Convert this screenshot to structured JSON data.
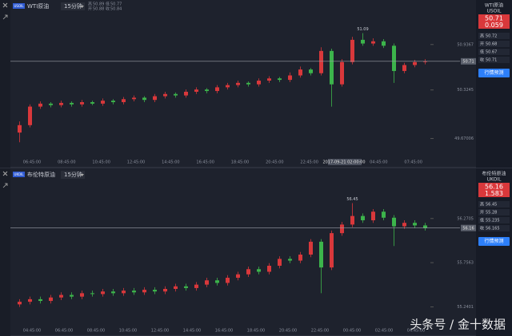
{
  "chart_data": [
    {
      "type": "candlestick",
      "symbol": "USOIL",
      "title": "WTI原油",
      "interval": "15分钟",
      "header_stats": [
        {
          "label": "高",
          "value": 50.89
        },
        {
          "label": "开",
          "value": 50.88
        },
        {
          "label": "低",
          "value": 50.77
        },
        {
          "label": "收",
          "value": 50.84
        }
      ],
      "open": [
        49.75,
        49.85,
        50.1,
        50.14,
        50.12,
        50.15,
        50.13,
        50.16,
        50.14,
        50.18,
        50.16,
        50.2,
        50.22,
        50.19,
        50.24,
        50.27,
        50.25,
        50.3,
        50.33,
        50.31,
        50.36,
        50.39,
        50.42,
        50.4,
        50.45,
        50.48,
        50.46,
        50.52,
        50.6,
        50.55,
        50.85,
        50.4,
        50.7,
        51.0,
        50.95,
        50.98,
        50.92,
        50.58,
        50.66,
        50.7
      ],
      "high": [
        49.9,
        50.13,
        50.17,
        50.16,
        50.18,
        50.17,
        50.19,
        50.18,
        50.21,
        50.2,
        50.23,
        50.25,
        50.24,
        50.27,
        50.3,
        50.29,
        50.33,
        50.36,
        50.35,
        50.39,
        50.42,
        50.45,
        50.44,
        50.48,
        50.51,
        50.5,
        50.56,
        50.64,
        50.62,
        50.9,
        50.88,
        50.74,
        51.04,
        51.09,
        51.02,
        51.01,
        50.95,
        50.69,
        50.73,
        50.74
      ],
      "low": [
        49.62,
        49.82,
        50.07,
        50.09,
        50.09,
        50.1,
        50.1,
        50.12,
        50.11,
        50.13,
        50.13,
        50.17,
        50.16,
        50.16,
        50.21,
        50.22,
        50.22,
        50.27,
        50.28,
        50.28,
        50.33,
        50.36,
        50.37,
        50.37,
        50.42,
        50.43,
        50.43,
        50.49,
        50.52,
        50.52,
        50.1,
        50.37,
        50.67,
        50.92,
        50.92,
        50.89,
        50.42,
        50.55,
        50.63,
        50.67
      ],
      "close": [
        49.85,
        50.1,
        50.14,
        50.12,
        50.15,
        50.13,
        50.16,
        50.14,
        50.18,
        50.16,
        50.2,
        50.22,
        50.19,
        50.24,
        50.27,
        50.25,
        50.3,
        50.33,
        50.31,
        50.36,
        50.39,
        50.42,
        50.4,
        50.45,
        50.48,
        50.46,
        50.52,
        50.6,
        50.55,
        50.85,
        50.4,
        50.7,
        51.0,
        50.95,
        50.98,
        50.92,
        50.58,
        50.66,
        50.7,
        50.71
      ],
      "colors": {
        "up": "#d9383b",
        "down": "#3cb44b"
      },
      "ylim": [
        49.45,
        51.3
      ],
      "yticks": [
        49.67006,
        50.3245,
        50.9367
      ],
      "time_labels": [
        "06:45:00",
        "08:45:00",
        "10:45:00",
        "12:45:00",
        "14:45:00",
        "16:45:00",
        "18:45:00",
        "20:45:00",
        "22:45:00",
        "2017-09-21 02:00:00",
        "04:45:00",
        "07:45:00"
      ],
      "highlight_time_index": 9,
      "quote": {
        "name": "WTI原油",
        "symbol": "USOIL",
        "change": 0.059,
        "stats": [
          {
            "label": "高",
            "value": 50.72
          },
          {
            "label": "开",
            "value": 50.68
          },
          {
            "label": "低",
            "value": 50.67
          },
          {
            "label": "收",
            "value": 50.71
          }
        ],
        "button": "行情预测"
      }
    },
    {
      "type": "candlestick",
      "symbol": "UKOIL",
      "title": "布伦特原油",
      "interval": "15分钟",
      "open": [
        55.27,
        55.3,
        55.33,
        55.31,
        55.35,
        55.38,
        55.36,
        55.4,
        55.39,
        55.42,
        55.4,
        55.43,
        55.41,
        55.44,
        55.42,
        55.45,
        55.48,
        55.46,
        55.5,
        55.55,
        55.52,
        55.58,
        55.62,
        55.68,
        55.65,
        55.72,
        55.8,
        55.78,
        55.85,
        56.0,
        55.7,
        56.1,
        56.2,
        56.3,
        56.25,
        56.35,
        56.28,
        56.18,
        56.22,
        56.19
      ],
      "high": [
        55.33,
        55.36,
        55.36,
        55.38,
        55.41,
        55.41,
        55.43,
        55.43,
        55.45,
        55.45,
        55.46,
        55.46,
        55.47,
        55.47,
        55.48,
        55.51,
        55.51,
        55.53,
        55.58,
        55.58,
        55.61,
        55.65,
        55.71,
        55.71,
        55.75,
        55.83,
        55.83,
        55.88,
        56.03,
        56.03,
        56.13,
        56.23,
        56.45,
        56.33,
        56.38,
        56.38,
        56.31,
        56.25,
        56.25,
        56.22
      ],
      "low": [
        55.24,
        55.27,
        55.28,
        55.28,
        55.32,
        55.33,
        55.33,
        55.36,
        55.36,
        55.37,
        55.37,
        55.38,
        55.38,
        55.39,
        55.39,
        55.42,
        55.43,
        55.43,
        55.47,
        55.49,
        55.49,
        55.55,
        55.59,
        55.62,
        55.62,
        55.69,
        55.75,
        55.75,
        55.82,
        55.4,
        55.67,
        56.07,
        56.17,
        56.22,
        56.22,
        56.25,
        55.95,
        56.15,
        56.16,
        56.13
      ],
      "close": [
        55.3,
        55.33,
        55.31,
        55.35,
        55.38,
        55.36,
        55.4,
        55.39,
        55.42,
        55.4,
        55.43,
        55.41,
        55.44,
        55.42,
        55.45,
        55.48,
        55.46,
        55.5,
        55.55,
        55.52,
        55.58,
        55.62,
        55.68,
        55.65,
        55.72,
        55.8,
        55.78,
        55.85,
        56.0,
        55.7,
        56.1,
        56.2,
        56.3,
        56.25,
        56.35,
        56.28,
        56.18,
        56.22,
        56.19,
        56.16
      ],
      "colors": {
        "up": "#d9383b",
        "down": "#3cb44b"
      },
      "ylim": [
        55.05,
        56.65
      ],
      "yticks": [
        55.2401,
        55.7563,
        56.2705
      ],
      "time_labels": [
        "04:45:00",
        "06:45:00",
        "08:45:00",
        "10:45:00",
        "12:45:00",
        "14:45:00",
        "16:45:00",
        "18:45:00",
        "20:45:00",
        "22:45:00",
        "00:45:00",
        "02:45:00",
        "04:45:00"
      ],
      "quote": {
        "name": "布伦特原油",
        "symbol": "UKOIL",
        "change": 1.583,
        "stats": [
          {
            "label": "高",
            "value": 56.45
          },
          {
            "label": "开",
            "value": 55.28
          },
          {
            "label": "低",
            "value": 55.235
          },
          {
            "label": "收",
            "value": 56.165
          }
        ],
        "button": "行情预测"
      }
    }
  ],
  "watermark": "头条号 / 金十数据"
}
